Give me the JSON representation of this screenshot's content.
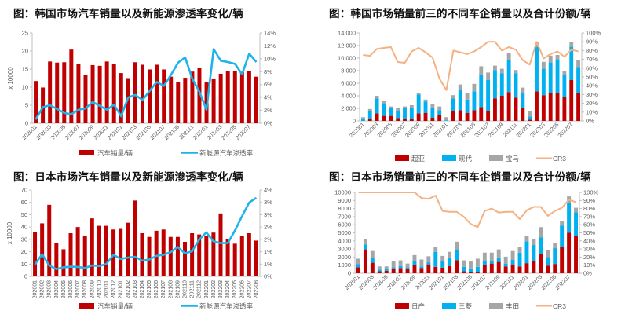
{
  "chart_data": [
    {
      "type": "bar+line",
      "title": "图：韩国市场汽车销量以及新能源渗透率变化/辆",
      "ylabel": "x 10000",
      "ylim": [
        0,
        25
      ],
      "yticks": [
        "0",
        "5",
        "10",
        "15",
        "20",
        "25"
      ],
      "y2lim": [
        0,
        14
      ],
      "y2ticks": [
        "0%",
        "2%",
        "4%",
        "6%",
        "8%",
        "10%",
        "12%",
        "14%"
      ],
      "x_label_step": 2,
      "categories": [
        "202001",
        "202002",
        "202003",
        "202004",
        "202005",
        "202006",
        "202007",
        "202008",
        "202009",
        "202010",
        "202011",
        "202012",
        "202101",
        "202102",
        "202103",
        "202104",
        "202105",
        "202106",
        "202107",
        "202108",
        "202109",
        "202110",
        "202111",
        "202112",
        "202201",
        "202202",
        "202203",
        "202204",
        "202205",
        "202206",
        "202207",
        "202208"
      ],
      "bars": [
        {
          "name": "汽车销量/辆",
          "color": "#C00000",
          "values": [
            11.7,
            9.9,
            17.1,
            16.8,
            16.9,
            20.4,
            16.4,
            13.4,
            16.1,
            15.9,
            17.1,
            16.5,
            13.9,
            12.5,
            16.9,
            16.2,
            14.9,
            16.2,
            14.9,
            12.9,
            11.3,
            12.6,
            14.3,
            15.4,
            11.3,
            12.4,
            13.7,
            14.4,
            14.4,
            14.2,
            14.4,
            12.9
          ]
        }
      ],
      "lines": [
        {
          "name": "新能源汽车渗透率",
          "color": "#1EB4EA",
          "axis": "right",
          "values": [
            0.6,
            2.5,
            2.8,
            2.2,
            1.6,
            1.4,
            2.1,
            2.3,
            3.3,
            2.7,
            2.1,
            2.9,
            1.1,
            4.0,
            4.4,
            3.6,
            5.0,
            6.4,
            5.8,
            7.5,
            9.4,
            10.2,
            6.9,
            4.9,
            2.1,
            11.5,
            9.7,
            9.5,
            9.2,
            7.6,
            10.8,
            9.5
          ]
        }
      ],
      "legend": "bottom"
    },
    {
      "type": "stacked-bar+line",
      "title": "图：韩国市场销量前三的不同车企销量以及合计份额/辆",
      "ylim": [
        0,
        14000
      ],
      "yticks": [
        "0",
        "2,000",
        "4,000",
        "6,000",
        "8,000",
        "10,000",
        "12,000",
        "14,000"
      ],
      "y2lim": [
        0,
        100
      ],
      "y2ticks": [
        "0%",
        "10%",
        "20%",
        "30%",
        "40%",
        "50%",
        "60%",
        "70%",
        "80%",
        "90%",
        "100%"
      ],
      "x_label_step": 2,
      "categories": [
        "202001",
        "202002",
        "202003",
        "202004",
        "202005",
        "202006",
        "202007",
        "202008",
        "202009",
        "202010",
        "202011",
        "202012",
        "202101",
        "202102",
        "202103",
        "202104",
        "202105",
        "202106",
        "202107",
        "202108",
        "202109",
        "202110",
        "202111",
        "202112",
        "202201",
        "202202",
        "202203",
        "202204",
        "202205",
        "202206",
        "202207",
        "202208"
      ],
      "bars": [
        {
          "name": "起亚",
          "color": "#C00000",
          "values": [
            0,
            300,
            1200,
            800,
            800,
            450,
            350,
            300,
            1200,
            1250,
            500,
            1000,
            0,
            1600,
            1700,
            1250,
            1700,
            2200,
            1600,
            3600,
            4000,
            4600,
            3700,
            2100,
            200,
            4700,
            4100,
            4500,
            4500,
            3800,
            6500,
            4500
          ]
        },
        {
          "name": "现代",
          "color": "#00B0F0",
          "values": [
            400,
            1300,
            2400,
            2000,
            1200,
            1150,
            1650,
            1700,
            3000,
            1850,
            1500,
            700,
            100,
            2000,
            3300,
            2150,
            3000,
            5100,
            4900,
            4500,
            3600,
            5100,
            3900,
            2400,
            500,
            7100,
            4200,
            4800,
            5300,
            3500,
            5300,
            4100
          ]
        },
        {
          "name": "宝马",
          "color": "#A6A6A6",
          "values": [
            200,
            300,
            400,
            400,
            300,
            400,
            300,
            500,
            200,
            300,
            700,
            600,
            500,
            500,
            800,
            1000,
            1200,
            1400,
            1200,
            700,
            700,
            1100,
            500,
            800,
            800,
            800,
            1100,
            1100,
            700,
            700,
            800,
            1100
          ]
        }
      ],
      "lines": [
        {
          "name": "CR3",
          "color": "#F4B183",
          "axis": "right",
          "values": [
            75,
            74,
            82,
            83,
            84,
            67,
            66,
            79,
            83,
            78,
            72,
            48,
            35,
            80,
            78,
            76,
            79,
            84,
            90,
            90,
            80,
            84,
            81,
            69,
            64,
            90,
            71,
            76,
            79,
            73,
            81,
            79
          ]
        }
      ],
      "legend": "bottom"
    },
    {
      "type": "bar+line",
      "title": "图：日本市场汽车销量以及新能源渗透率变化/辆",
      "ylabel": "x 10000",
      "ylim": [
        0,
        70
      ],
      "yticks": [
        "0",
        "10",
        "20",
        "30",
        "40",
        "50",
        "60",
        "70"
      ],
      "y2lim": [
        0,
        4
      ],
      "y2ticks": [
        "0%",
        "1%",
        "1%",
        "2%",
        "2%",
        "3%",
        "3%",
        "4%"
      ],
      "x_label_step": 1,
      "categories": [
        "202001",
        "202002",
        "202003",
        "202004",
        "202005",
        "202006",
        "202007",
        "202008",
        "202009",
        "202010",
        "202011",
        "202012",
        "202101",
        "202102",
        "202103",
        "202104",
        "202105",
        "202106",
        "202107",
        "202108",
        "202109",
        "202110",
        "202111",
        "202112",
        "202201",
        "202202",
        "202203",
        "202204",
        "202205",
        "202206",
        "202207",
        "202208"
      ],
      "bars": [
        {
          "name": "汽车销量/辆",
          "color": "#C00000",
          "values": [
            36,
            43,
            58,
            27,
            22,
            35,
            40,
            33,
            47,
            41,
            41,
            38,
            38.5,
            43.5,
            61.5,
            35,
            32,
            37,
            38,
            32,
            32,
            28,
            35,
            34,
            33,
            35.5,
            51,
            30,
            26.5,
            33,
            35,
            29
          ]
        }
      ],
      "lines": [
        {
          "name": "新能源汽车渗透率",
          "color": "#1EB4EA",
          "axis": "right",
          "values": [
            0.55,
            1.03,
            0.51,
            0.34,
            0.42,
            0.45,
            0.44,
            0.39,
            0.51,
            0.48,
            0.58,
            1.0,
            0.81,
            0.87,
            0.91,
            0.73,
            0.78,
            0.95,
            1.0,
            1.12,
            1.36,
            1.07,
            1.16,
            1.7,
            2.04,
            1.62,
            1.54,
            1.54,
            2.12,
            2.79,
            3.42,
            3.64
          ]
        }
      ],
      "legend": "bottom"
    },
    {
      "type": "stacked-bar+line",
      "title": "图：日本市场销量前三的不同车企销量以及合计份额/辆",
      "ylim": [
        0,
        10000
      ],
      "yticks": [
        "0",
        "1000",
        "2000",
        "3000",
        "4000",
        "5000",
        "6000",
        "7000",
        "8000",
        "9000",
        "10000"
      ],
      "y2lim": [
        0,
        100
      ],
      "y2ticks": [
        "0%",
        "10%",
        "20%",
        "30%",
        "40%",
        "50%",
        "60%",
        "70%",
        "80%",
        "90%",
        "100%"
      ],
      "x_label_step": 2,
      "categories": [
        "202001",
        "202002",
        "202003",
        "202004",
        "202005",
        "202006",
        "202007",
        "202008",
        "202009",
        "202010",
        "202011",
        "202012",
        "202101",
        "202102",
        "202103",
        "202104",
        "202105",
        "202106",
        "202107",
        "202108",
        "202109",
        "202110",
        "202111",
        "202112",
        "202201",
        "202202",
        "202203",
        "202204",
        "202205",
        "202206",
        "202207",
        "202208"
      ],
      "bars": [
        {
          "name": "日产",
          "color": "#C00000",
          "values": [
            750,
            2950,
            1300,
            250,
            300,
            500,
            650,
            550,
            1050,
            650,
            1100,
            800,
            700,
            900,
            1600,
            250,
            150,
            150,
            1050,
            1200,
            1400,
            850,
            1100,
            850,
            1250,
            1550,
            2350,
            950,
            1150,
            3300,
            5000,
            4650
          ]
        },
        {
          "name": "三菱",
          "color": "#00B0F0",
          "values": [
            400,
            600,
            550,
            200,
            200,
            250,
            250,
            200,
            450,
            200,
            250,
            1850,
            800,
            1050,
            1350,
            550,
            450,
            650,
            500,
            350,
            550,
            350,
            550,
            1700,
            2700,
            1950,
            2100,
            1050,
            1950,
            2600,
            3700,
            2900
          ]
        },
        {
          "name": "丰田",
          "color": "#A6A6A6",
          "values": [
            650,
            650,
            900,
            400,
            350,
            750,
            700,
            450,
            750,
            850,
            750,
            650,
            650,
            700,
            950,
            800,
            850,
            1000,
            1000,
            1000,
            1000,
            850,
            1100,
            750,
            650,
            700,
            1250,
            900,
            650,
            500,
            800,
            550
          ]
        }
      ],
      "lines": [
        {
          "name": "CR3",
          "color": "#F4B183",
          "axis": "right",
          "values": [
            100,
            100,
            100,
            100,
            100,
            100,
            100,
            100,
            100,
            93,
            92,
            96,
            77,
            76,
            76,
            70,
            61,
            57,
            77,
            80,
            75,
            76,
            76,
            67,
            78,
            82,
            82,
            71,
            77,
            81,
            91,
            88
          ]
        }
      ],
      "legend": "bottom"
    }
  ]
}
